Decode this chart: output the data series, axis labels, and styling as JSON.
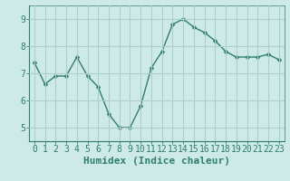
{
  "x": [
    0,
    1,
    2,
    3,
    4,
    5,
    6,
    7,
    8,
    9,
    10,
    11,
    12,
    13,
    14,
    15,
    16,
    17,
    18,
    19,
    20,
    21,
    22,
    23
  ],
  "y": [
    7.4,
    6.6,
    6.9,
    6.9,
    7.6,
    6.9,
    6.5,
    5.5,
    5.0,
    5.0,
    5.8,
    7.2,
    7.8,
    8.8,
    9.0,
    8.7,
    8.5,
    8.2,
    7.8,
    7.6,
    7.6,
    7.6,
    7.7,
    7.5
  ],
  "line_color": "#2e7d6e",
  "marker": "D",
  "marker_size": 2.5,
  "bg_color": "#ceeae8",
  "plot_bg_color": "#ceeae8",
  "grid_color": "#aacfcc",
  "axis_color": "#2e7d6e",
  "xlabel": "Humidex (Indice chaleur)",
  "ylim": [
    4.5,
    9.5
  ],
  "xlim": [
    -0.5,
    23.5
  ],
  "yticks": [
    5,
    6,
    7,
    8,
    9
  ],
  "xticks": [
    0,
    1,
    2,
    3,
    4,
    5,
    6,
    7,
    8,
    9,
    10,
    11,
    12,
    13,
    14,
    15,
    16,
    17,
    18,
    19,
    20,
    21,
    22,
    23
  ],
  "tick_label_color": "#2e7d6e",
  "font_color": "#2e7d6e",
  "xlabel_fontsize": 8,
  "tick_fontsize": 7
}
